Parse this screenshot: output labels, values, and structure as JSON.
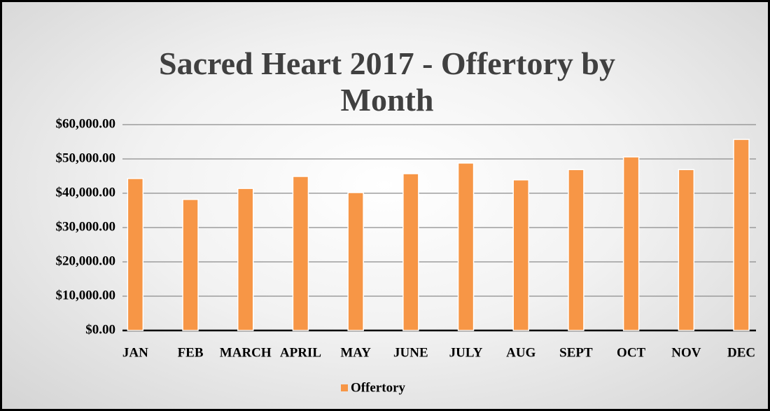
{
  "chart_data": {
    "type": "bar",
    "title": "Sacred Heart 2017 - Offertory by Month",
    "categories": [
      "JAN",
      "FEB",
      "MARCH",
      "APRIL",
      "MAY",
      "JUNE",
      "JULY",
      "AUG",
      "SEPT",
      "OCT",
      "NOV",
      "DEC"
    ],
    "series": [
      {
        "name": "Offertory",
        "color": "#f79646",
        "values": [
          44300,
          38200,
          41400,
          44900,
          40200,
          45700,
          48800,
          43900,
          46900,
          50600,
          46900,
          55700
        ]
      }
    ],
    "ylim": [
      0,
      60000
    ],
    "yticks": [
      {
        "value": 0,
        "label": "$0.00"
      },
      {
        "value": 10000,
        "label": "$10,000.00"
      },
      {
        "value": 20000,
        "label": "$20,000.00"
      },
      {
        "value": 30000,
        "label": "$30,000.00"
      },
      {
        "value": 40000,
        "label": "$40,000.00"
      },
      {
        "value": 50000,
        "label": "$50,000.00"
      },
      {
        "value": 60000,
        "label": "$60,000.00"
      }
    ],
    "grid": true,
    "legend": "bottom"
  }
}
